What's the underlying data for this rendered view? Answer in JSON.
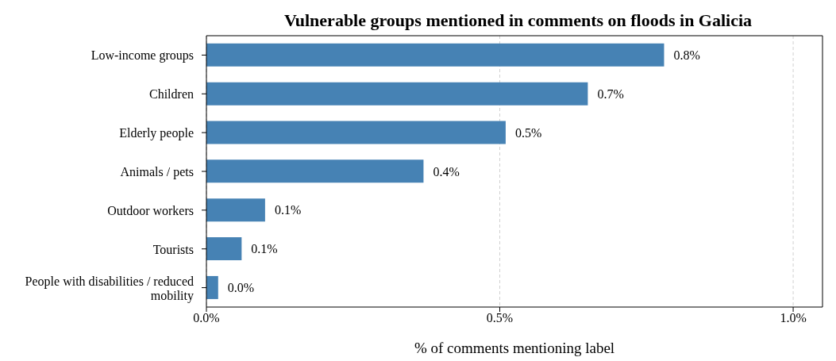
{
  "chart_data": {
    "type": "bar",
    "orientation": "horizontal",
    "title": "Vulnerable groups mentioned in comments on floods in Galicia",
    "xlabel": "% of comments mentioning label",
    "categories": [
      "Low-income groups",
      "Children",
      "Elderly people",
      "Animals / pets",
      "Outdoor workers",
      "Tourists",
      "People with disabilities / reduced mobility"
    ],
    "values": [
      0.78,
      0.65,
      0.51,
      0.37,
      0.1,
      0.06,
      0.02
    ],
    "value_labels": [
      "0.8%",
      "0.7%",
      "0.5%",
      "0.4%",
      "0.1%",
      "0.1%",
      "0.0%"
    ],
    "color": "#4682b4",
    "xlim": [
      0,
      1.05
    ],
    "xticks": [
      {
        "value": 0,
        "label": "0.0%"
      },
      {
        "value": 0.5,
        "label": "0.5%"
      },
      {
        "value": 1,
        "label": "1.0%"
      }
    ],
    "grid": "x"
  }
}
